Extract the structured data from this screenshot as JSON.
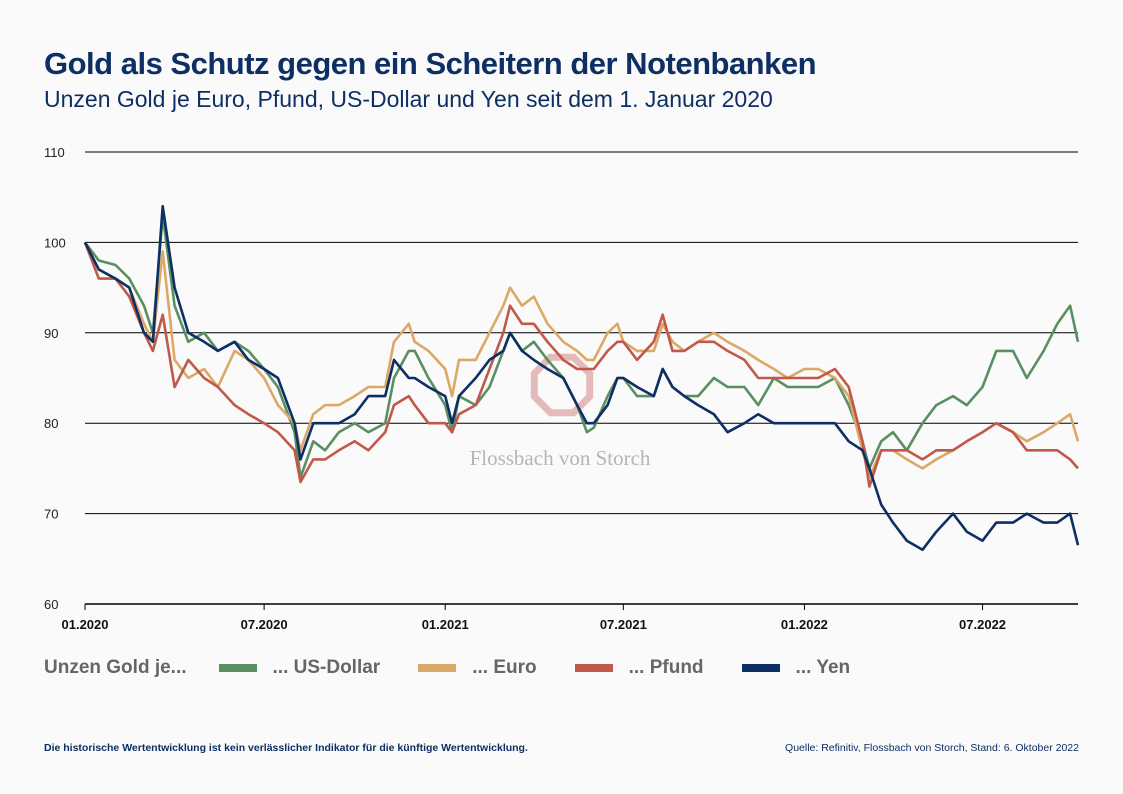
{
  "header": {
    "title": "Gold als Schutz gegen ein Scheitern der Notenbanken",
    "subtitle": "Unzen Gold je Euro, Pfund, US-Dollar und Yen seit dem 1. Januar 2020"
  },
  "watermark": {
    "text": "Flossbach von Storch"
  },
  "footer": {
    "disclaimer": "Die historische Wertentwicklung ist kein verlässlicher Indikator für die künftige Wertentwicklung.",
    "source": "Quelle: Refinitiv, Flossbach von Storch, Stand: 6. Oktober 2022"
  },
  "chart_data": {
    "type": "line",
    "title": "Gold als Schutz gegen ein Scheitern der Notenbanken",
    "subtitle": "Unzen Gold je Euro, Pfund, US-Dollar und Yen seit dem 1. Januar 2020",
    "legend_title": "Unzen Gold je...",
    "legend_position": "bottom",
    "grid": true,
    "ylim": [
      60,
      110
    ],
    "yticks": [
      "60",
      "70",
      "80",
      "90",
      "100",
      "110"
    ],
    "xlim": [
      "2020-01-01",
      "2022-10-06"
    ],
    "xticks": [
      {
        "date": "2020-01-01",
        "label": "01.2020"
      },
      {
        "date": "2020-07-01",
        "label": "07.2020"
      },
      {
        "date": "2021-01-01",
        "label": "01.2021"
      },
      {
        "date": "2021-07-01",
        "label": "07.2021"
      },
      {
        "date": "2022-01-01",
        "label": "01.2022"
      },
      {
        "date": "2022-07-01",
        "label": "07.2022"
      }
    ],
    "x": [
      "2020-01-01",
      "2020-01-15",
      "2020-02-01",
      "2020-02-15",
      "2020-03-01",
      "2020-03-10",
      "2020-03-20",
      "2020-04-01",
      "2020-04-15",
      "2020-05-01",
      "2020-05-15",
      "2020-06-01",
      "2020-06-15",
      "2020-07-01",
      "2020-07-15",
      "2020-08-01",
      "2020-08-07",
      "2020-08-20",
      "2020-09-01",
      "2020-09-15",
      "2020-10-01",
      "2020-10-15",
      "2020-11-01",
      "2020-11-10",
      "2020-11-25",
      "2020-12-01",
      "2020-12-15",
      "2021-01-01",
      "2021-01-08",
      "2021-01-15",
      "2021-02-01",
      "2021-02-15",
      "2021-03-01",
      "2021-03-08",
      "2021-03-20",
      "2021-04-01",
      "2021-04-15",
      "2021-05-01",
      "2021-05-15",
      "2021-05-25",
      "2021-06-01",
      "2021-06-15",
      "2021-06-25",
      "2021-07-01",
      "2021-07-15",
      "2021-08-01",
      "2021-08-10",
      "2021-08-20",
      "2021-09-01",
      "2021-09-15",
      "2021-10-01",
      "2021-10-15",
      "2021-11-01",
      "2021-11-15",
      "2021-12-01",
      "2021-12-15",
      "2022-01-01",
      "2022-01-15",
      "2022-02-01",
      "2022-02-15",
      "2022-03-01",
      "2022-03-08",
      "2022-03-20",
      "2022-04-01",
      "2022-04-15",
      "2022-05-01",
      "2022-05-15",
      "2022-06-01",
      "2022-06-15",
      "2022-07-01",
      "2022-07-15",
      "2022-08-01",
      "2022-08-15",
      "2022-09-01",
      "2022-09-15",
      "2022-09-28",
      "2022-10-06"
    ],
    "series": [
      {
        "name": "... US-Dollar",
        "color": "#5a8f62",
        "values": [
          100,
          98,
          97.5,
          96,
          93,
          90,
          103,
          93,
          89,
          90,
          88,
          89,
          88,
          86,
          84,
          79,
          74,
          78,
          77,
          79,
          80,
          79,
          80,
          85,
          88,
          88,
          85,
          82,
          79,
          83,
          82,
          84,
          88,
          90,
          88,
          89,
          87,
          85,
          82,
          79,
          79.5,
          83,
          85,
          85,
          83,
          83,
          86,
          84,
          83,
          83,
          85,
          84,
          84,
          82,
          85,
          84,
          84,
          84,
          85,
          82,
          78,
          75,
          78,
          79,
          77,
          80,
          82,
          83,
          82,
          84,
          88,
          88,
          85,
          88,
          91,
          93,
          89
        ]
      },
      {
        "name": "... Euro",
        "color": "#dba867",
        "values": [
          100,
          97,
          96,
          95,
          91,
          89,
          99,
          87,
          85,
          86,
          84,
          88,
          87,
          85,
          82,
          80,
          77,
          81,
          82,
          82,
          83,
          84,
          84,
          89,
          91,
          89,
          88,
          86,
          83,
          87,
          87,
          90,
          93,
          95,
          93,
          94,
          91,
          89,
          88,
          87,
          87,
          90,
          91,
          89,
          88,
          88,
          91,
          89,
          88,
          89,
          90,
          89,
          88,
          87,
          86,
          85,
          86,
          86,
          85,
          83,
          77,
          74,
          77,
          77,
          76,
          75,
          76,
          77,
          78,
          79,
          80,
          79,
          78,
          79,
          80,
          81,
          78
        ]
      },
      {
        "name": "... Pfund",
        "color": "#c0594a",
        "values": [
          100,
          96,
          96,
          94,
          90,
          88,
          92,
          84,
          87,
          85,
          84,
          82,
          81,
          80,
          79,
          77,
          73.5,
          76,
          76,
          77,
          78,
          77,
          79,
          82,
          83,
          82,
          80,
          80,
          79,
          81,
          82,
          86,
          90,
          93,
          91,
          91,
          89,
          87,
          86,
          86,
          86,
          88,
          89,
          89,
          87,
          89,
          92,
          88,
          88,
          89,
          89,
          88,
          87,
          85,
          85,
          85,
          85,
          85,
          86,
          84,
          78,
          73,
          77,
          77,
          77,
          76,
          77,
          77,
          78,
          79,
          80,
          79,
          77,
          77,
          77,
          76,
          75
        ]
      },
      {
        "name": "... Yen",
        "color": "#0d2f63",
        "values": [
          100,
          97,
          96,
          95,
          90,
          89,
          104,
          95,
          90,
          89,
          88,
          89,
          87,
          86,
          85,
          80,
          76,
          80,
          80,
          80,
          81,
          83,
          83,
          87,
          85,
          85,
          84,
          83,
          80,
          83,
          85,
          87,
          88,
          90,
          88,
          87,
          86,
          85,
          82,
          80,
          80,
          82,
          85,
          85,
          84,
          83,
          86,
          84,
          83,
          82,
          81,
          79,
          80,
          81,
          80,
          80,
          80,
          80,
          80,
          78,
          77,
          75,
          71,
          69,
          67,
          66,
          68,
          70,
          68,
          67,
          69,
          69,
          70,
          69,
          69,
          70,
          66.5
        ]
      }
    ]
  }
}
